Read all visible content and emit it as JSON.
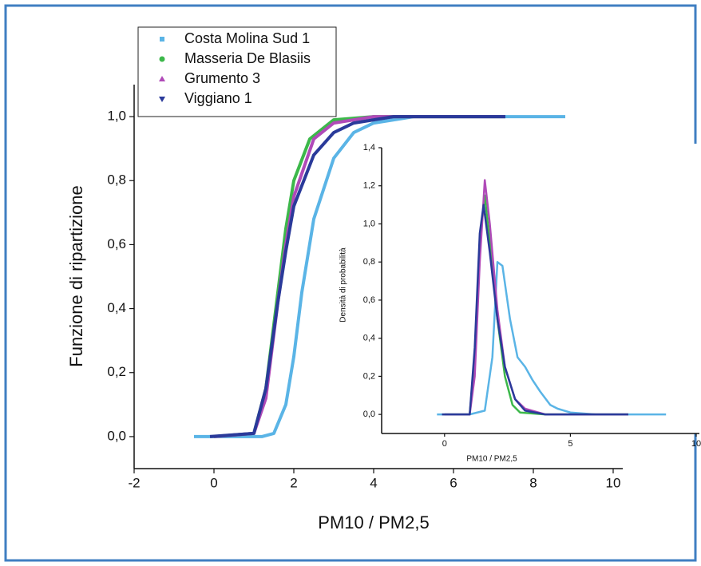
{
  "chart_data": [
    {
      "type": "line",
      "x_label": "PM10 / PM2,5",
      "y_label": "Funzione di ripartizione",
      "xlim": [
        -2,
        10
      ],
      "ylim": [
        -0.1,
        1.1
      ],
      "xticks": [
        -2,
        0,
        2,
        4,
        6,
        8,
        10
      ],
      "yticks": [
        {
          "value": 0,
          "label": "0,0"
        },
        {
          "value": 0.2,
          "label": "0,2"
        },
        {
          "value": 0.4,
          "label": "0,4"
        },
        {
          "value": 0.6,
          "label": "0,6"
        },
        {
          "value": 0.8,
          "label": "0,8"
        },
        {
          "value": 1.0,
          "label": "1,0"
        }
      ],
      "legend": "top-left",
      "series": [
        {
          "name": "Costa Molina Sud 1",
          "color": "#5ab4e6",
          "marker": "square",
          "x": [
            -0.5,
            1.2,
            1.5,
            1.8,
            2.0,
            2.2,
            2.5,
            3.0,
            3.5,
            4.0,
            5.0,
            8.8
          ],
          "values": [
            0,
            0,
            0.01,
            0.1,
            0.25,
            0.45,
            0.68,
            0.87,
            0.95,
            0.98,
            1.0,
            1.0
          ]
        },
        {
          "name": "Masseria De Blasiis",
          "color": "#3cb84a",
          "marker": "circle",
          "x": [
            0,
            1.0,
            1.3,
            1.6,
            1.8,
            2.0,
            2.4,
            3.0,
            4.0,
            7.3
          ],
          "values": [
            0,
            0.01,
            0.15,
            0.45,
            0.65,
            0.8,
            0.93,
            0.99,
            1.0,
            1.0
          ]
        },
        {
          "name": "Grumento 3",
          "color": "#b04ab8",
          "marker": "triangle-up",
          "x": [
            0,
            1.0,
            1.3,
            1.6,
            1.8,
            2.0,
            2.5,
            3.0,
            4.0,
            7.3
          ],
          "values": [
            0,
            0.01,
            0.12,
            0.42,
            0.6,
            0.75,
            0.93,
            0.98,
            1.0,
            1.0
          ]
        },
        {
          "name": "Viggiano 1",
          "color": "#2a3a9a",
          "marker": "triangle-down",
          "x": [
            -0.1,
            1.0,
            1.3,
            1.6,
            1.8,
            2.0,
            2.5,
            3.0,
            3.5,
            4.5,
            7.3
          ],
          "values": [
            0,
            0.01,
            0.15,
            0.42,
            0.58,
            0.72,
            0.88,
            0.95,
            0.98,
            1.0,
            1.0
          ]
        }
      ]
    },
    {
      "type": "line",
      "x_label": "PM10 / PM2,5",
      "y_label": "Densità di probabilità",
      "xlim": [
        -2.5,
        10
      ],
      "ylim": [
        -0.1,
        1.4
      ],
      "xticks": [
        0,
        5,
        10
      ],
      "yticks": [
        {
          "value": 0,
          "label": "0,0"
        },
        {
          "value": 0.2,
          "label": "0,2"
        },
        {
          "value": 0.4,
          "label": "0,4"
        },
        {
          "value": 0.6,
          "label": "0,6"
        },
        {
          "value": 0.8,
          "label": "0,8"
        },
        {
          "value": 1.0,
          "label": "1,0"
        },
        {
          "value": 1.2,
          "label": "1,2"
        },
        {
          "value": 1.4,
          "label": "1,4"
        }
      ],
      "series": [
        {
          "color": "#5ab4e6",
          "x": [
            -0.3,
            1.0,
            1.6,
            1.9,
            2.1,
            2.3,
            2.6,
            2.9,
            3.2,
            3.5,
            3.8,
            4.2,
            4.5,
            5.0,
            6.0,
            8.8
          ],
          "values": [
            0,
            0,
            0.02,
            0.3,
            0.8,
            0.78,
            0.5,
            0.3,
            0.25,
            0.18,
            0.12,
            0.05,
            0.03,
            0.01,
            0,
            0
          ]
        },
        {
          "color": "#3cb84a",
          "x": [
            0,
            1.0,
            1.2,
            1.4,
            1.6,
            1.8,
            2.1,
            2.4,
            2.7,
            3.0,
            4.0,
            7.3
          ],
          "values": [
            0,
            0,
            0.3,
            0.9,
            1.15,
            0.9,
            0.5,
            0.2,
            0.05,
            0.01,
            0,
            0
          ]
        },
        {
          "color": "#b04ab8",
          "x": [
            0,
            1.0,
            1.2,
            1.4,
            1.6,
            1.8,
            2.1,
            2.4,
            2.8,
            3.2,
            4.0,
            7.3
          ],
          "values": [
            0,
            0,
            0.2,
            0.8,
            1.23,
            1.0,
            0.55,
            0.25,
            0.08,
            0.03,
            0,
            0
          ]
        },
        {
          "color": "#2a3a9a",
          "x": [
            -0.1,
            1.0,
            1.2,
            1.4,
            1.55,
            1.8,
            2.1,
            2.4,
            2.8,
            3.2,
            4.0,
            7.3
          ],
          "values": [
            0,
            0,
            0.35,
            0.95,
            1.1,
            0.85,
            0.5,
            0.25,
            0.08,
            0.02,
            0,
            0
          ]
        }
      ]
    }
  ]
}
